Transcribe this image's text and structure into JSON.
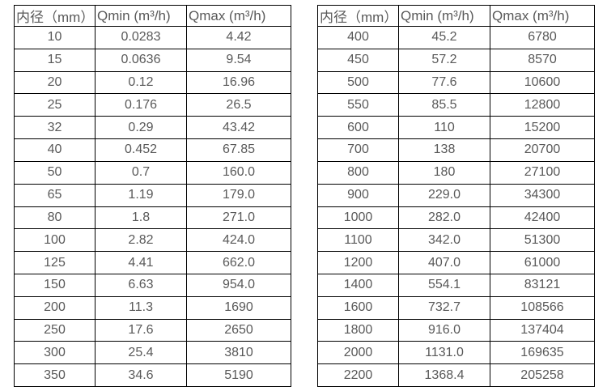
{
  "tables": [
    {
      "name": "flow-rates-small-diameters",
      "headers": [
        "内径（mm）",
        "Qmin (m³/h)",
        "Qmax (m³/h)"
      ],
      "rows": [
        [
          "10",
          "0.0283",
          "4.42"
        ],
        [
          "15",
          "0.0636",
          "9.54"
        ],
        [
          "20",
          "0.12",
          "16.96"
        ],
        [
          "25",
          "0.176",
          "26.5"
        ],
        [
          "32",
          "0.29",
          "43.42"
        ],
        [
          "40",
          "0.452",
          "67.85"
        ],
        [
          "50",
          "0.7",
          "160.0"
        ],
        [
          "65",
          "1.19",
          "179.0"
        ],
        [
          "80",
          "1.8",
          "271.0"
        ],
        [
          "100",
          "2.82",
          "424.0"
        ],
        [
          "125",
          "4.41",
          "662.0"
        ],
        [
          "150",
          "6.63",
          "954.0"
        ],
        [
          "200",
          "11.3",
          "1690"
        ],
        [
          "250",
          "17.6",
          "2650"
        ],
        [
          "300",
          "25.4",
          "3810"
        ],
        [
          "350",
          "34.6",
          "5190"
        ]
      ]
    },
    {
      "name": "flow-rates-large-diameters",
      "headers": [
        "内径（mm）",
        "Qmin (m³/h)",
        "Qmax (m³/h)"
      ],
      "rows": [
        [
          "400",
          "45.2",
          "6780"
        ],
        [
          "450",
          "57.2",
          "8570"
        ],
        [
          "500",
          "77.6",
          "10600"
        ],
        [
          "550",
          "85.5",
          "12800"
        ],
        [
          "600",
          "110",
          "15200"
        ],
        [
          "700",
          "138",
          "20700"
        ],
        [
          "800",
          "180",
          "27100"
        ],
        [
          "900",
          "229.0",
          "34300"
        ],
        [
          "1000",
          "282.0",
          "42400"
        ],
        [
          "1100",
          "342.0",
          "51300"
        ],
        [
          "1200",
          "407.0",
          "61000"
        ],
        [
          "1400",
          "554.1",
          "83121"
        ],
        [
          "1600",
          "732.7",
          "108566"
        ],
        [
          "1800",
          "916.0",
          "137404"
        ],
        [
          "2000",
          "1131.0",
          "169635"
        ],
        [
          "2200",
          "1368.4",
          "205258"
        ]
      ]
    }
  ],
  "colors": {
    "text": "#595959",
    "border": "#000000",
    "background": "#ffffff"
  }
}
